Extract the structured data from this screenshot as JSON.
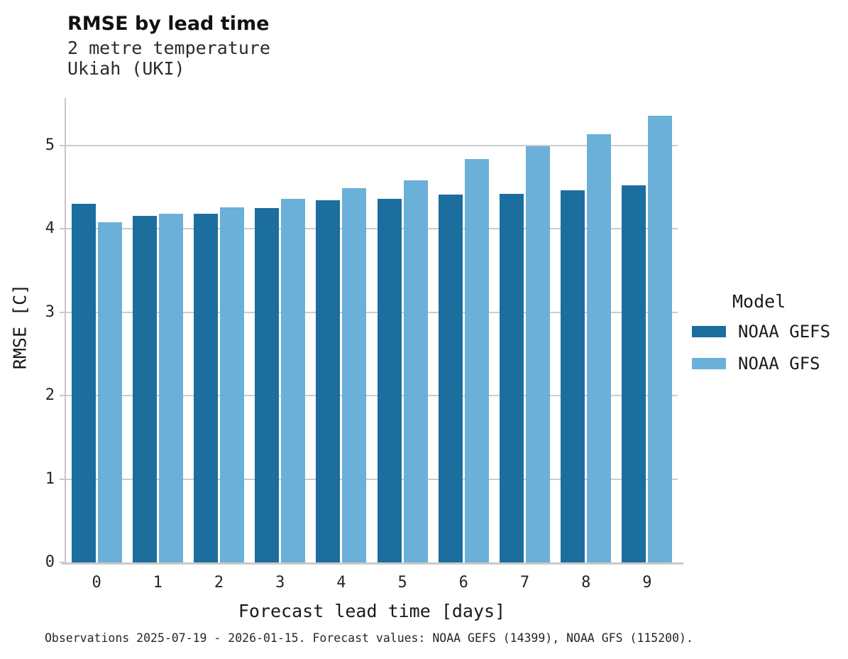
{
  "header": {
    "title": "RMSE by lead time",
    "subtitle_line1": "2 metre temperature",
    "subtitle_line2": "Ukiah (UKI)"
  },
  "chart_data": {
    "type": "bar",
    "title": "RMSE by lead time",
    "subtitle": "2 metre temperature, Ukiah (UKI)",
    "categories": [
      "0",
      "1",
      "2",
      "3",
      "4",
      "5",
      "6",
      "7",
      "8",
      "9"
    ],
    "series": [
      {
        "name": "NOAA GEFS",
        "color": "#1b6e9e",
        "values": [
          4.3,
          4.16,
          4.18,
          4.25,
          4.34,
          4.36,
          4.41,
          4.42,
          4.46,
          4.52
        ]
      },
      {
        "name": "NOAA GFS",
        "color": "#6bb0d8",
        "values": [
          4.08,
          4.18,
          4.26,
          4.36,
          4.49,
          4.58,
          4.84,
          4.99,
          5.14,
          5.36
        ]
      }
    ],
    "xlabel": "Forecast lead time [days]",
    "ylabel": "RMSE [C]",
    "ylim": [
      0,
      5.57
    ],
    "yticks": [
      0,
      1,
      2,
      3,
      4,
      5
    ],
    "grid": "horizontal-gridlines-behind-bars",
    "legend_position": "right"
  },
  "legend": {
    "title": "Model",
    "items": [
      {
        "label": "NOAA GEFS",
        "color": "#1b6e9e"
      },
      {
        "label": "NOAA GFS",
        "color": "#6bb0d8"
      }
    ]
  },
  "caption": "Observations 2025-07-19 - 2026-01-15. Forecast values: NOAA GEFS (14399), NOAA GFS (115200)."
}
